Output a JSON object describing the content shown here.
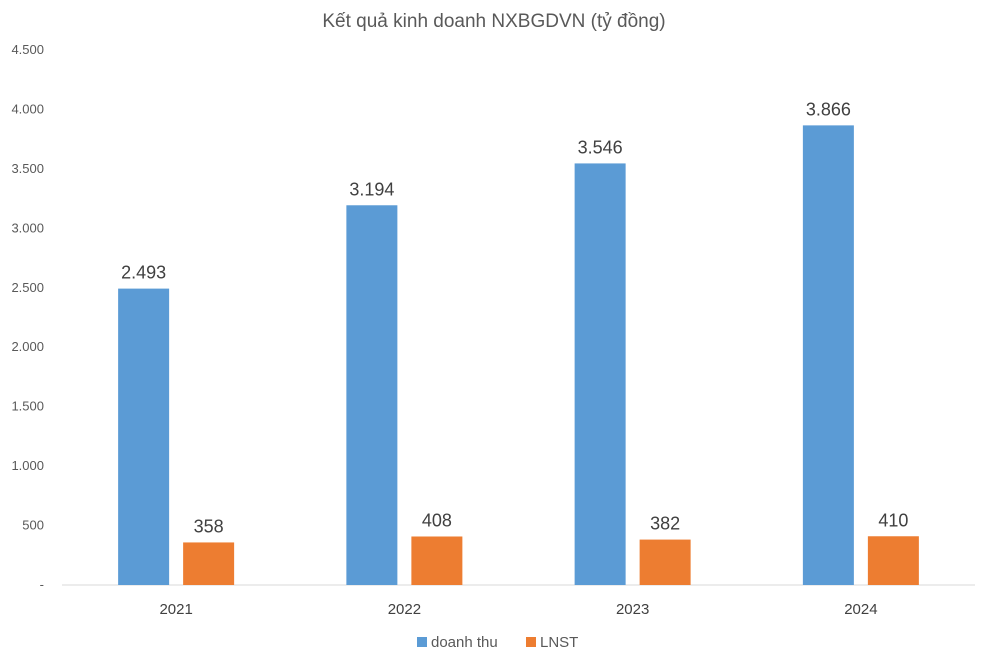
{
  "chart_data": {
    "type": "bar",
    "title": "Kết quả kinh doanh NXBGDVN (tỷ đồng)",
    "categories": [
      "2021",
      "2022",
      "2023",
      "2024"
    ],
    "series": [
      {
        "name": "doanh thu",
        "values": [
          2493,
          3194,
          3546,
          3866
        ],
        "labels": [
          "2.493",
          "3.194",
          "3.546",
          "3.866"
        ],
        "color": "#5b9bd5"
      },
      {
        "name": "LNST",
        "values": [
          358,
          408,
          382,
          410
        ],
        "labels": [
          "358",
          "408",
          "382",
          "410"
        ],
        "color": "#ed7d31"
      }
    ],
    "ylim": [
      0,
      4500
    ],
    "yticks": [
      0,
      500,
      1000,
      1500,
      2000,
      2500,
      3000,
      3500,
      4000,
      4500
    ],
    "ytick_labels": [
      "-",
      "500",
      "1.000",
      "1.500",
      "2.000",
      "2.500",
      "3.000",
      "3.500",
      "4.000",
      "4.500"
    ],
    "grid": false,
    "legend_position": "bottom"
  }
}
